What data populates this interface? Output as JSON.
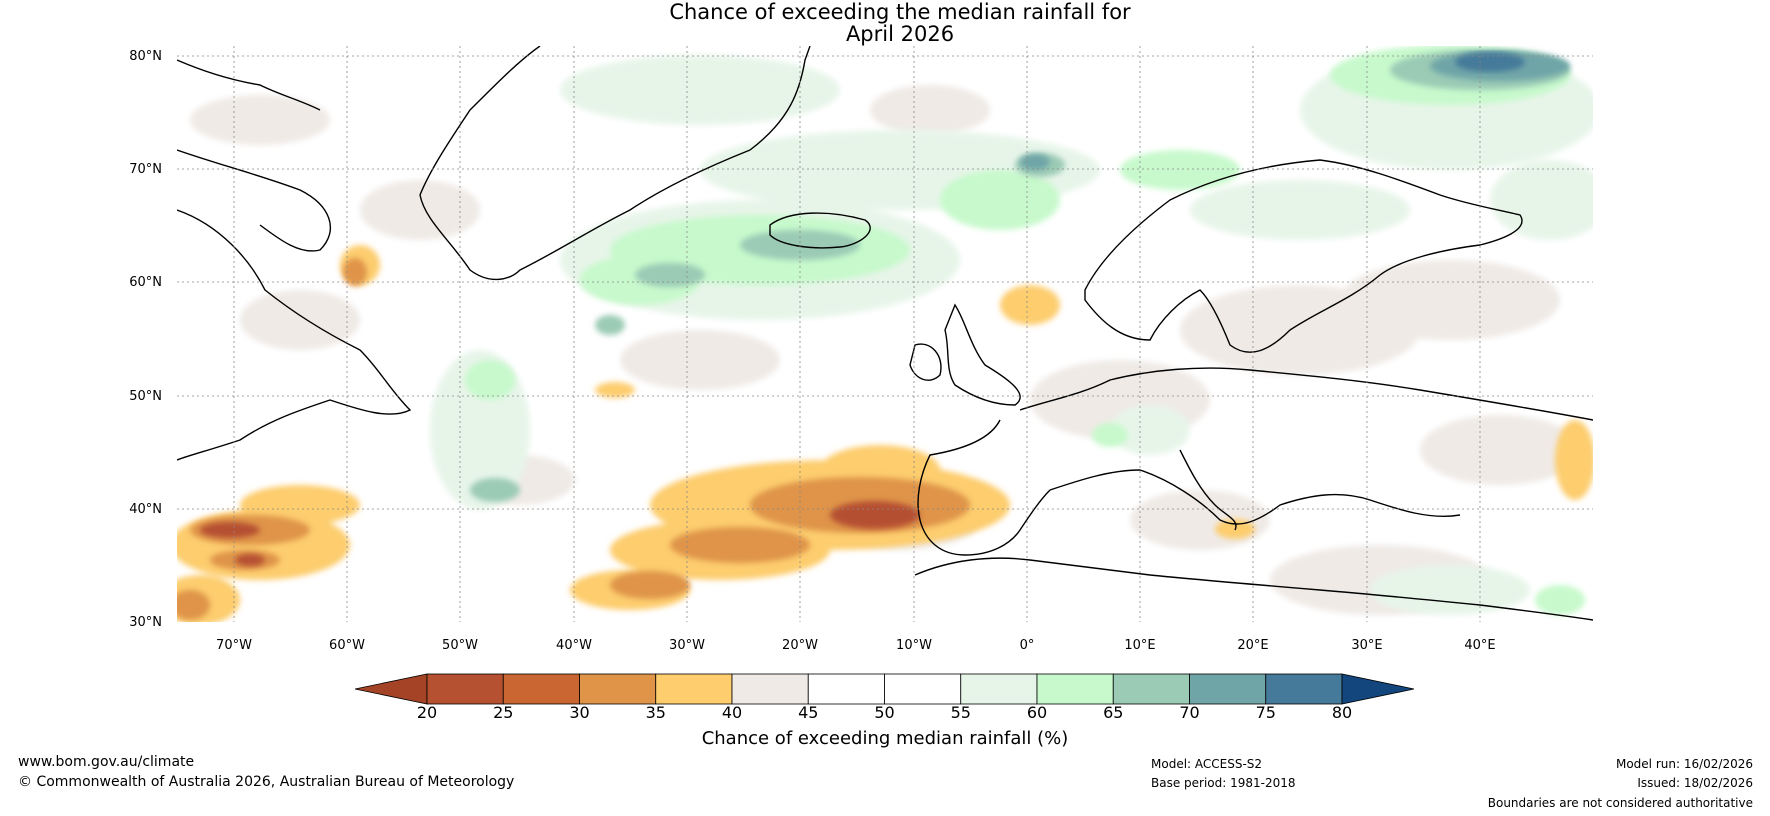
{
  "title": {
    "line1": "Chance of exceeding the median rainfall for",
    "line2": "April 2026"
  },
  "map": {
    "lat_ticks": [
      "80°N",
      "70°N",
      "60°N",
      "50°N",
      "40°N",
      "30°N"
    ],
    "lon_ticks": [
      "70°W",
      "60°W",
      "50°W",
      "40°W",
      "30°W",
      "20°W",
      "10°W",
      "0°",
      "10°E",
      "20°E",
      "30°E",
      "40°E"
    ],
    "lat_range": [
      30,
      80
    ],
    "lon_range": [
      -75,
      50
    ]
  },
  "colorbar": {
    "title": "Chance of exceeding median rainfall (%)",
    "tick_labels": [
      "20",
      "25",
      "30",
      "35",
      "40",
      "45",
      "50",
      "55",
      "60",
      "65",
      "70",
      "75",
      "80"
    ],
    "colors": [
      "#a44326",
      "#b55030",
      "#c96631",
      "#df9448",
      "#fdcd6e",
      "#efeae6",
      "#ffffff",
      "#ffffff",
      "#e7f5e9",
      "#c7f9cc",
      "#9bcbb5",
      "#70a5a8",
      "#457a9a",
      "#12467d"
    ]
  },
  "footer": {
    "website": "www.bom.gov.au/climate",
    "copyright": "© Commonwealth of Australia 2026, Australian Bureau of Meteorology",
    "model": "Model: ACCESS-S2",
    "base_period": "Base period: 1981-2018",
    "model_run": "Model run: 16/02/2026",
    "issued": "Issued: 18/02/2026",
    "boundaries": "Boundaries are not considered authoritative"
  },
  "colors": {
    "dry_strong": "#a44326",
    "dry": "#df9448",
    "dry_light": "#fdcd6e",
    "neutral": "#efeae6",
    "wet_light": "#e7f5e9",
    "wet": "#c7f9cc",
    "wet_mid": "#9bcbb5",
    "wet_strong": "#457a9a"
  }
}
